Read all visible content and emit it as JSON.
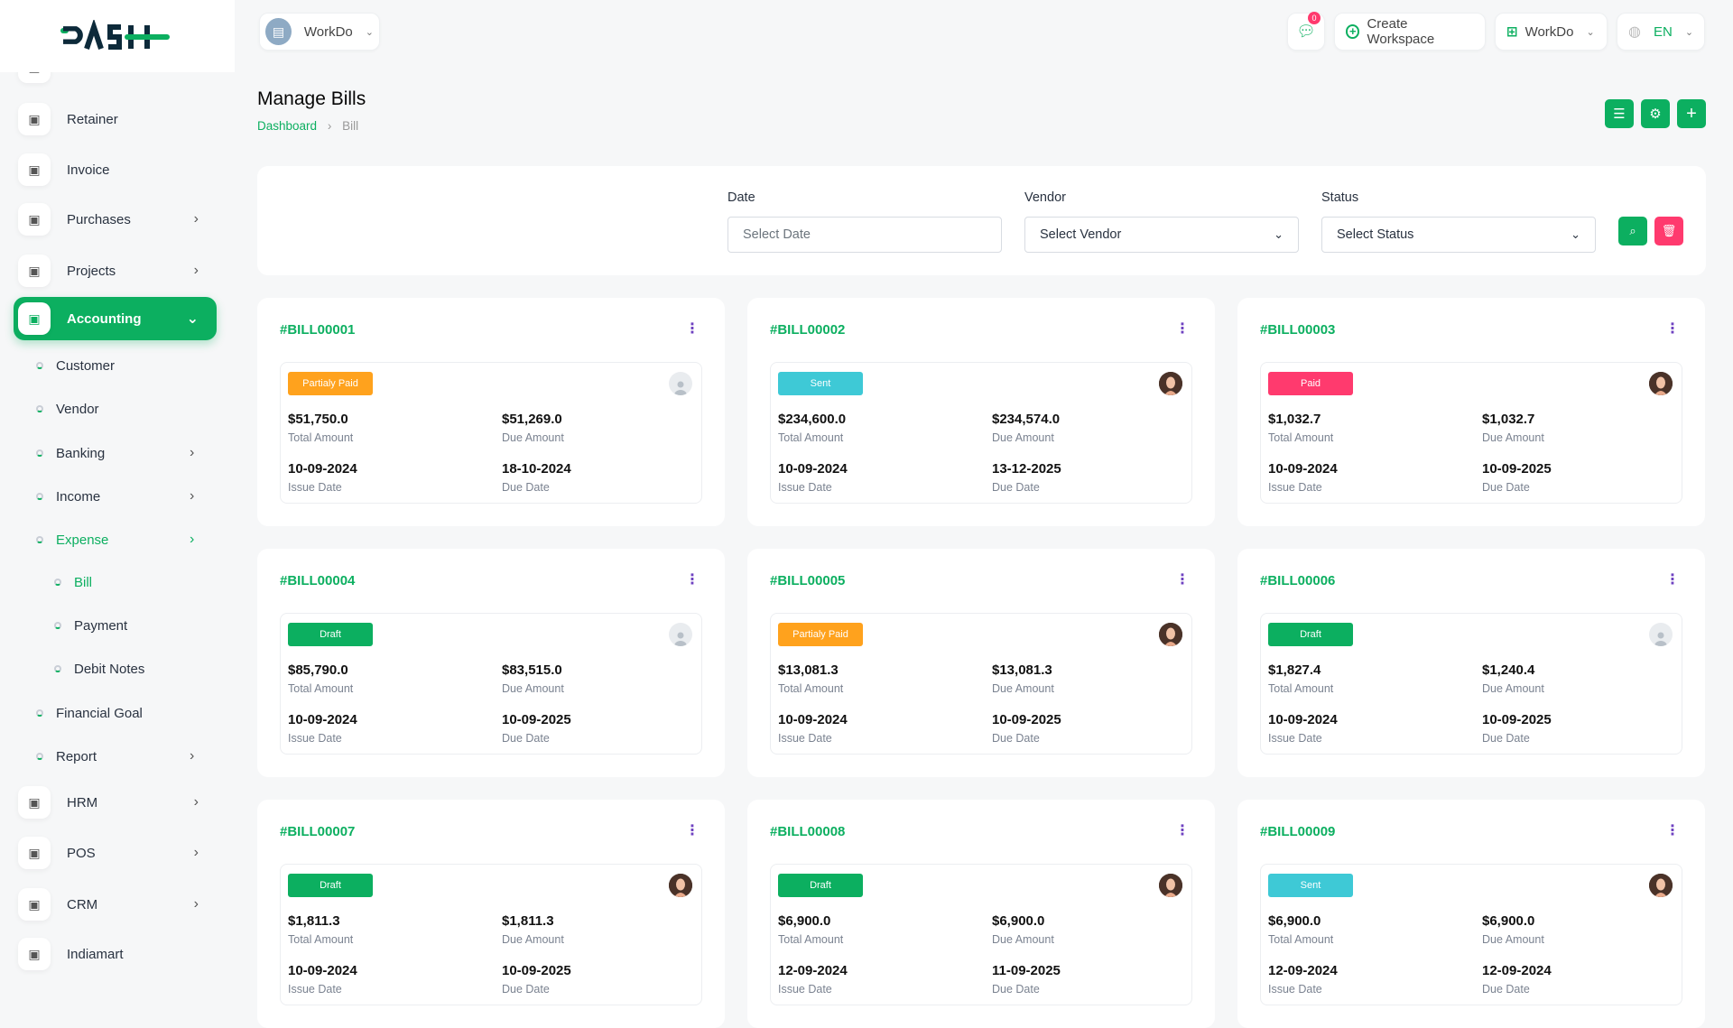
{
  "header": {
    "logo_text": "DASH",
    "workspace": "WorkDo",
    "notifications_count": "0",
    "create_workspace": "Create Workspace",
    "company": "WorkDo",
    "language": "EN"
  },
  "sidebar": {
    "items": [
      {
        "label": "Retainer",
        "icon": "retainer-icon"
      },
      {
        "label": "Invoice",
        "icon": "invoice-icon"
      },
      {
        "label": "Purchases",
        "icon": "cart-icon",
        "arrow": true
      },
      {
        "label": "Projects",
        "icon": "projects-icon",
        "arrow": true
      },
      {
        "label": "Accounting",
        "icon": "accounting-icon",
        "arrow": true,
        "active": true
      },
      {
        "label": "HRM",
        "icon": "hrm-icon",
        "arrow": true
      },
      {
        "label": "POS",
        "icon": "pos-icon",
        "arrow": true
      },
      {
        "label": "CRM",
        "icon": "crm-icon",
        "arrow": true
      },
      {
        "label": "Indiamart",
        "icon": "indiamart-icon"
      }
    ],
    "accounting_sub": [
      {
        "label": "Customer"
      },
      {
        "label": "Vendor"
      },
      {
        "label": "Banking",
        "arrow": true
      },
      {
        "label": "Income",
        "arrow": true
      },
      {
        "label": "Expense",
        "arrow": true,
        "open": true
      },
      {
        "label": "Bill",
        "level": 2,
        "active": true
      },
      {
        "label": "Payment",
        "level": 2
      },
      {
        "label": "Debit Notes",
        "level": 2
      },
      {
        "label": "Financial Goal"
      },
      {
        "label": "Report",
        "arrow": true
      }
    ]
  },
  "page": {
    "title": "Manage Bills",
    "breadcrumb": [
      "Dashboard",
      "Bill"
    ]
  },
  "filters": {
    "date_label": "Date",
    "date_placeholder": "Select Date",
    "vendor_label": "Vendor",
    "vendor_value": "Select Vendor",
    "status_label": "Status",
    "status_value": "Select Status"
  },
  "labels": {
    "total_amount": "Total Amount",
    "due_amount": "Due Amount",
    "issue_date": "Issue Date",
    "due_date": "Due Date"
  },
  "status_colors": {
    "Partialy Paid": "#ffa21d",
    "Sent": "#3ec9d6",
    "Paid": "#ff3a6e",
    "Draft": "#0caf60"
  },
  "bills": [
    {
      "id": "#BILL00001",
      "status": "Partialy Paid",
      "total": "$51,750.0",
      "due": "$51,269.0",
      "issue_date": "10-09-2024",
      "due_date": "18-10-2024",
      "avatar": "default"
    },
    {
      "id": "#BILL00002",
      "status": "Sent",
      "total": "$234,600.0",
      "due": "$234,574.0",
      "issue_date": "10-09-2024",
      "due_date": "13-12-2025",
      "avatar": "photo"
    },
    {
      "id": "#BILL00003",
      "status": "Paid",
      "total": "$1,032.7",
      "due": "$1,032.7",
      "issue_date": "10-09-2024",
      "due_date": "10-09-2025",
      "avatar": "photo"
    },
    {
      "id": "#BILL00004",
      "status": "Draft",
      "total": "$85,790.0",
      "due": "$83,515.0",
      "issue_date": "10-09-2024",
      "due_date": "10-09-2025",
      "avatar": "default"
    },
    {
      "id": "#BILL00005",
      "status": "Partialy Paid",
      "total": "$13,081.3",
      "due": "$13,081.3",
      "issue_date": "10-09-2024",
      "due_date": "10-09-2025",
      "avatar": "photo"
    },
    {
      "id": "#BILL00006",
      "status": "Draft",
      "total": "$1,827.4",
      "due": "$1,240.4",
      "issue_date": "10-09-2024",
      "due_date": "10-09-2025",
      "avatar": "default"
    },
    {
      "id": "#BILL00007",
      "status": "Draft",
      "total": "$1,811.3",
      "due": "$1,811.3",
      "issue_date": "10-09-2024",
      "due_date": "10-09-2025",
      "avatar": "photo"
    },
    {
      "id": "#BILL00008",
      "status": "Draft",
      "total": "$6,900.0",
      "due": "$6,900.0",
      "issue_date": "12-09-2024",
      "due_date": "11-09-2025",
      "avatar": "photo"
    },
    {
      "id": "#BILL00009",
      "status": "Sent",
      "total": "$6,900.0",
      "due": "$6,900.0",
      "issue_date": "12-09-2024",
      "due_date": "12-09-2024",
      "avatar": "photo"
    }
  ]
}
